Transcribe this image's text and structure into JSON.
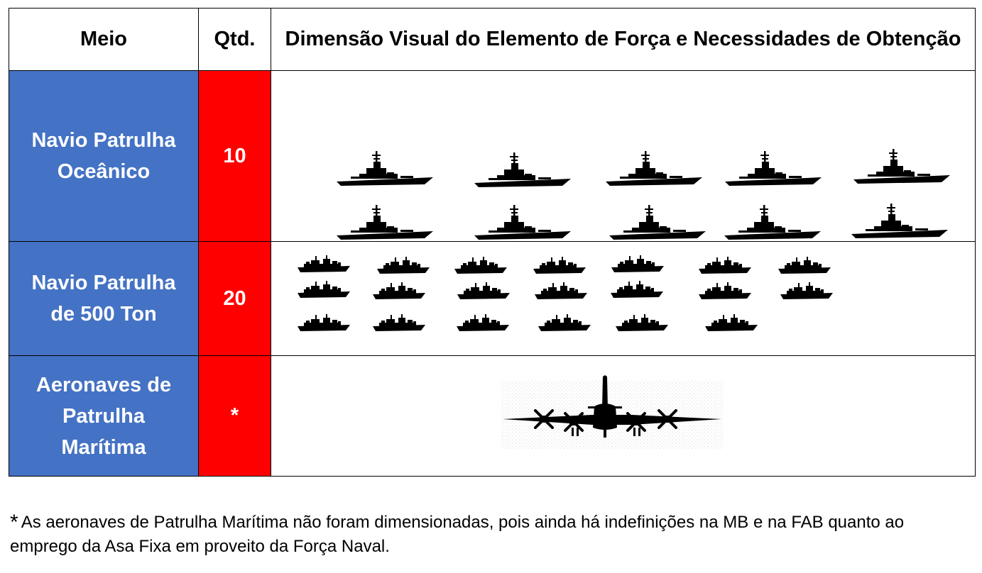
{
  "table": {
    "headers": {
      "meio": "Meio",
      "qtd": "Qtd.",
      "dimensao": "Dimensão Visual do Elemento de Força e Necessidades de Obtenção"
    },
    "rows": [
      {
        "meio_lines": [
          "Navio Patrulha",
          "Oceânico"
        ],
        "qtd": "10",
        "icon": "ocean-patrol-ship-icon",
        "icon_count": 10
      },
      {
        "meio_lines": [
          "Navio Patrulha",
          "de 500 Ton"
        ],
        "qtd": "20",
        "icon": "patrol-ship-500t-icon",
        "icon_count": 20
      },
      {
        "meio_lines": [
          "Aeronaves de",
          "Patrulha",
          "Marítima"
        ],
        "qtd": "*",
        "icon": "maritime-patrol-aircraft-icon",
        "icon_count": 1
      }
    ]
  },
  "footnote": {
    "marker": "*",
    "text": "As aeronaves de Patrulha Marítima não foram dimensionadas, pois ainda há indefinições na MB e na FAB quanto ao emprego da Asa Fixa em proveito da Força Naval."
  },
  "colors": {
    "meio_bg": "#4472c4",
    "qtd_bg": "#ff0000",
    "text_light": "#ffffff",
    "icon": "#000000"
  }
}
